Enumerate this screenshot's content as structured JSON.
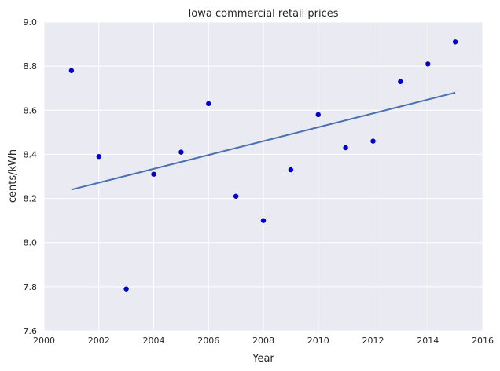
{
  "chart_data": {
    "type": "scatter",
    "title": "Iowa   commercial retail prices",
    "xlabel": "Year",
    "ylabel": "cents/kWh",
    "xlim": [
      2000,
      2016
    ],
    "ylim": [
      7.6,
      9.0
    ],
    "xticks": [
      2000,
      2002,
      2004,
      2006,
      2008,
      2010,
      2012,
      2014,
      2016
    ],
    "yticks": [
      7.6,
      7.8,
      8.0,
      8.2,
      8.4,
      8.6,
      8.8,
      9.0
    ],
    "grid": true,
    "colors": {
      "background": "#eaeaf2",
      "grid": "#ffffff",
      "points": "#0000cc",
      "fit_line": "#4c72b0"
    },
    "series": [
      {
        "type": "scatter",
        "x": [
          2001,
          2002,
          2003,
          2004,
          2005,
          2006,
          2007,
          2008,
          2009,
          2010,
          2011,
          2012,
          2013,
          2014,
          2015
        ],
        "y": [
          8.78,
          8.39,
          7.79,
          8.31,
          8.41,
          8.63,
          8.21,
          8.1,
          8.33,
          8.58,
          8.43,
          8.46,
          8.73,
          8.81,
          8.91
        ]
      },
      {
        "type": "line",
        "x": [
          2001,
          2015
        ],
        "y": [
          8.24,
          8.68
        ]
      }
    ]
  }
}
